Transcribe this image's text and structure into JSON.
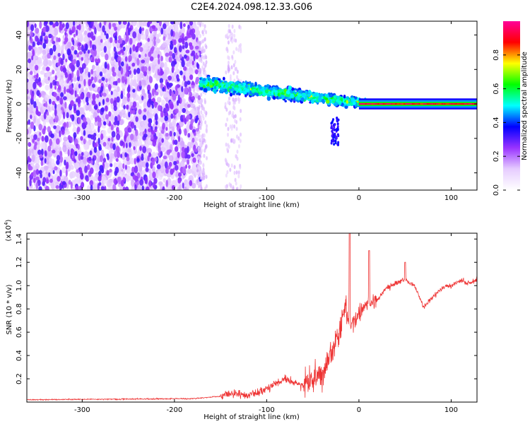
{
  "title": "C2E4.2024.098.12.33.G06",
  "chart_data": [
    {
      "type": "heatmap",
      "name": "spectrogram",
      "xlabel": "Height of straight line (km)",
      "ylabel": "Frequency (Hz)",
      "xlim": [
        -360,
        128
      ],
      "ylim": [
        -50,
        48
      ],
      "xticks": [
        -300,
        -200,
        -100,
        0,
        100
      ],
      "yticks": [
        40,
        20,
        0,
        -20,
        -40
      ],
      "colorbar": {
        "label": "Normalized spectral amplitude",
        "range": [
          0,
          1
        ],
        "ticks": [
          0.0,
          0.2,
          0.4,
          0.6,
          0.8
        ],
        "tick_labels": [
          "0.0",
          "0.2",
          "0.4",
          "0.6",
          "0.8"
        ],
        "colors": [
          "#ffffff",
          "#e6ccff",
          "#9933ff",
          "#0000ff",
          "#00ffff",
          "#00ff00",
          "#ffff00",
          "#ff0000",
          "#ff0099"
        ]
      },
      "regions": [
        {
          "description": "noise",
          "x_range": [
            -360,
            -172
          ],
          "amplitude": 0.2
        },
        {
          "description": "signal track",
          "x_range": [
            -172,
            10
          ],
          "freq_start": 12,
          "freq_end": 0
        },
        {
          "description": "strong line",
          "x_range": [
            0,
            128
          ],
          "freq": 0,
          "amplitude": 0.95
        }
      ]
    },
    {
      "type": "line",
      "name": "snr",
      "xlabel": "Height of straight line (km)",
      "ylabel": "SNR (10 * v/v)",
      "scale_label": "(x10",
      "scale_exp": "4",
      "scale_close": ")",
      "xlim": [
        -360,
        128
      ],
      "ylim": [
        0,
        1.45
      ],
      "xticks": [
        -300,
        -200,
        -100,
        0,
        100
      ],
      "yticks": [
        0.2,
        0.4,
        0.6,
        0.8,
        1.0,
        1.2,
        1.4
      ],
      "ytick_labels": [
        "0.2",
        "0.4",
        "0.6",
        "0.8",
        "1.0",
        "1.2",
        "1.4"
      ],
      "color": "#ee3333",
      "envelope": {
        "x": [
          -360,
          -180,
          -150,
          -140,
          -120,
          -100,
          -80,
          -60,
          -40,
          -30,
          -20,
          -15,
          -10,
          0,
          10,
          20,
          30,
          40,
          50,
          60,
          70,
          80,
          90,
          100,
          110,
          120,
          128
        ],
        "y": [
          0.02,
          0.03,
          0.05,
          0.08,
          0.05,
          0.12,
          0.2,
          0.14,
          0.25,
          0.42,
          0.6,
          0.85,
          0.7,
          0.75,
          0.85,
          0.88,
          0.98,
          1.02,
          1.05,
          1.0,
          0.82,
          0.9,
          0.98,
          1.0,
          1.05,
          1.02,
          1.05
        ]
      },
      "peaks": [
        {
          "x": -10,
          "y": 1.45
        },
        {
          "x": 11,
          "y": 1.3
        },
        {
          "x": 50,
          "y": 1.2
        }
      ]
    }
  ]
}
